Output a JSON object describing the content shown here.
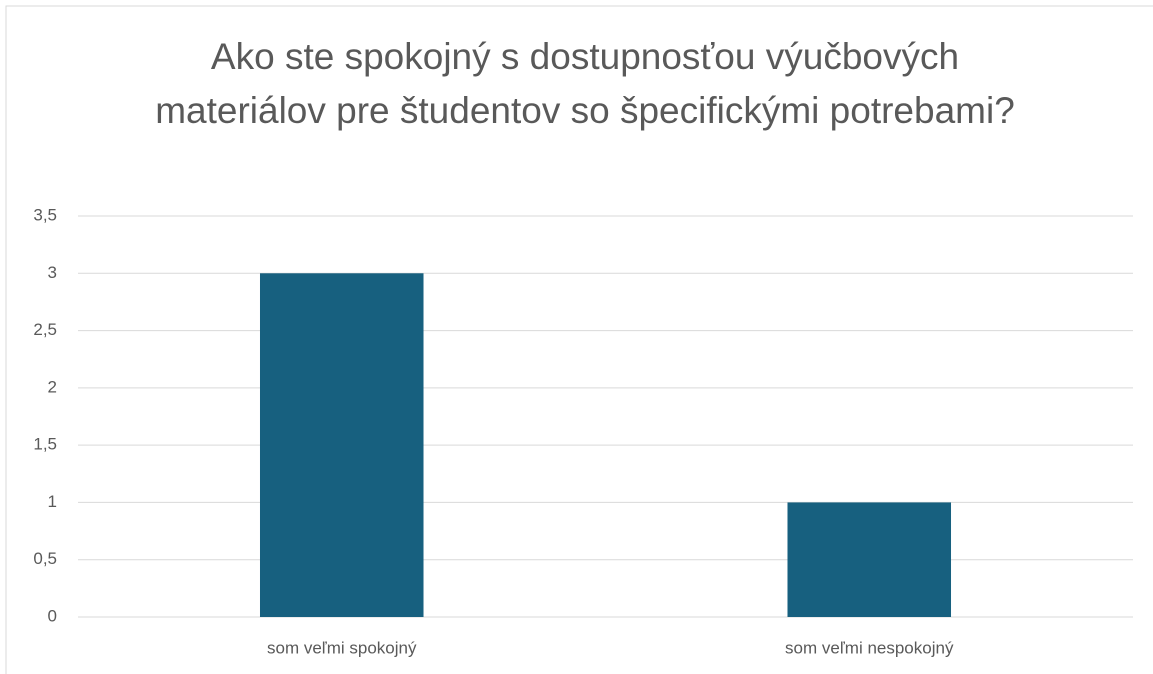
{
  "chart_data": {
    "type": "bar",
    "title": "Ako ste spokojný s dostupnosťou výučbových materiálov pre študentov so špecifickými potrebami?",
    "categories": [
      "som veľmi spokojný",
      "som veľmi nespokojný"
    ],
    "values": [
      3,
      1
    ],
    "color": "#17607f",
    "ylim": [
      0,
      3.5
    ],
    "yticks": [
      0,
      {
        "value": 0.5,
        "label": "0,5"
      },
      1,
      {
        "value": 1.5,
        "label": "1,5"
      },
      2,
      {
        "value": 2.5,
        "label": "2,5"
      },
      3,
      {
        "value": 3.5,
        "label": "3,5"
      }
    ],
    "grid": true
  }
}
